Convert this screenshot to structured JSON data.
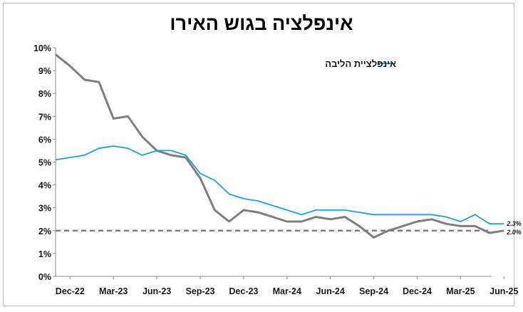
{
  "chart_data": {
    "type": "line",
    "title": "אינפלציה בגוש האירו",
    "xlabel": "",
    "ylabel": "",
    "ylim": [
      0,
      10
    ],
    "y_ticks": [
      "0%",
      "1%",
      "2%",
      "3%",
      "4%",
      "5%",
      "6%",
      "7%",
      "8%",
      "9%",
      "10%"
    ],
    "x_ticks": [
      "Dec-22",
      "Mar-23",
      "Jun-23",
      "Sep-23",
      "Dec-23",
      "Mar-24",
      "Jun-24",
      "Sep-24",
      "Dec-24",
      "Mar-25",
      "Jun-25"
    ],
    "x": [
      "Nov-22",
      "Dec-22",
      "Jan-23",
      "Feb-23",
      "Mar-23",
      "Apr-23",
      "May-23",
      "Jun-23",
      "Jul-23",
      "Aug-23",
      "Sep-23",
      "Oct-23",
      "Nov-23",
      "Dec-23",
      "Jan-24",
      "Feb-24",
      "Mar-24",
      "Apr-24",
      "May-24",
      "Jun-24",
      "Jul-24",
      "Aug-24",
      "Sep-24",
      "Oct-24",
      "Nov-24",
      "Dec-24",
      "Jan-25",
      "Feb-25",
      "Mar-25",
      "Apr-25",
      "May-25",
      "Jun-25"
    ],
    "series": [
      {
        "name": "אינפלציית הליבה",
        "color": "#1ba1e2",
        "values": [
          5.1,
          5.2,
          5.3,
          5.6,
          5.7,
          5.6,
          5.3,
          5.5,
          5.5,
          5.3,
          4.5,
          4.2,
          3.6,
          3.4,
          3.3,
          3.1,
          2.9,
          2.7,
          2.9,
          2.9,
          2.9,
          2.8,
          2.7,
          2.7,
          2.7,
          2.7,
          2.7,
          2.6,
          2.4,
          2.7,
          2.3,
          2.3
        ]
      },
      {
        "name": "",
        "color": "#7f7f7f",
        "values": [
          9.7,
          9.2,
          8.6,
          8.5,
          6.9,
          7.0,
          6.1,
          5.5,
          5.3,
          5.2,
          4.3,
          2.9,
          2.4,
          2.9,
          2.8,
          2.6,
          2.4,
          2.4,
          2.6,
          2.5,
          2.6,
          2.2,
          1.7,
          2.0,
          2.2,
          2.4,
          2.5,
          2.3,
          2.2,
          2.2,
          1.9,
          2.0
        ]
      }
    ],
    "reference_line": {
      "value": 2.0,
      "style": "dashed",
      "color": "#7f7f7f"
    },
    "end_labels": [
      "2.3%",
      "2.0%"
    ],
    "legend": {
      "placement": "top-right"
    },
    "grid": false
  }
}
